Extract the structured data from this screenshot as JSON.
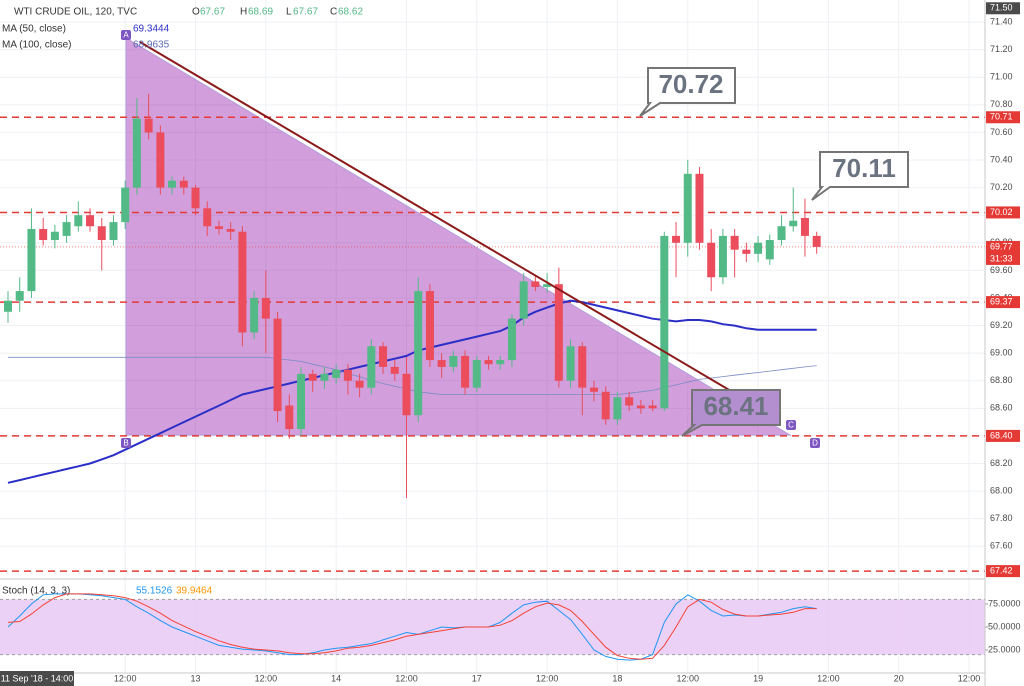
{
  "header": {
    "symbol": "WTI CRUDE OIL, 120, TVC",
    "o_label": "O",
    "o": "67.67",
    "h_label": "H",
    "h": "68.69",
    "l_label": "L",
    "l": "67.67",
    "c_label": "C",
    "c": "68.62",
    "ma50_label": "MA (50, close)",
    "ma50_value": "69.3444",
    "ma100_label": "MA (100, close)",
    "ma100_value": "68.9635",
    "stoch_label": "Stoch (14, 3, 3)",
    "stoch_k": "55.1526",
    "stoch_d": "39.9464",
    "cursor_date": "11 Sep '18 - 14:00"
  },
  "chart_data": {
    "type": "candlestick",
    "categories": [
      null,
      null,
      null,
      null,
      null,
      null,
      null,
      null,
      null,
      null,
      "12:00",
      null,
      null,
      null,
      null,
      null,
      "13",
      null,
      null,
      null,
      null,
      null,
      "12:00",
      null,
      null,
      null,
      null,
      null,
      "14",
      null,
      null,
      null,
      null,
      null,
      "12:00",
      null,
      null,
      null,
      null,
      null,
      "17",
      null,
      null,
      null,
      null,
      null,
      "12:00",
      null,
      null,
      null,
      null,
      null,
      "18",
      null,
      null,
      null,
      null,
      null,
      "12:00",
      null,
      null,
      null,
      null,
      null,
      "19",
      null,
      null,
      null,
      null,
      null,
      "12:00",
      null,
      null,
      null,
      null,
      null,
      "20",
      null,
      null,
      null,
      null,
      null,
      "12:00",
      null
    ],
    "open": [
      69.3,
      69.38,
      69.45,
      69.9,
      69.82,
      69.85,
      69.92,
      70.0,
      69.92,
      69.82,
      69.95,
      70.2,
      70.7,
      70.6,
      70.2,
      70.25,
      70.2,
      70.05,
      69.92,
      69.9,
      69.88,
      69.15,
      69.4,
      69.25,
      68.62,
      68.45,
      68.85,
      68.8,
      68.82,
      68.88,
      68.8,
      68.75,
      69.05,
      68.9,
      68.85,
      68.55,
      69.45,
      68.95,
      68.9,
      68.98,
      68.75,
      68.95,
      68.92,
      68.95,
      69.25,
      69.52,
      69.48,
      69.5,
      68.8,
      69.05,
      68.75,
      68.72,
      68.52,
      68.68,
      68.62,
      68.62,
      68.6,
      69.85,
      69.8,
      70.3,
      69.8,
      69.55,
      69.85,
      69.75,
      69.72,
      69.68,
      69.82,
      69.92,
      69.98,
      69.85,
      null,
      null,
      null,
      null,
      null,
      null,
      null,
      null,
      null,
      null,
      null,
      null,
      null,
      null
    ],
    "high": [
      69.45,
      69.55,
      70.05,
      69.98,
      69.93,
      70.0,
      70.1,
      70.05,
      69.98,
      70.0,
      70.25,
      70.85,
      70.88,
      70.65,
      70.28,
      70.28,
      70.22,
      70.1,
      69.96,
      69.95,
      69.92,
      69.45,
      69.6,
      69.3,
      68.7,
      68.9,
      68.88,
      68.9,
      68.92,
      68.92,
      68.85,
      69.1,
      69.08,
      68.95,
      68.97,
      69.55,
      69.5,
      69.0,
      69.02,
      69.02,
      68.98,
      68.98,
      68.98,
      69.28,
      69.58,
      69.56,
      69.58,
      69.62,
      69.1,
      69.08,
      68.8,
      68.76,
      68.72,
      68.72,
      68.66,
      68.66,
      69.88,
      69.95,
      70.4,
      70.35,
      69.9,
      69.9,
      69.9,
      69.8,
      69.85,
      69.86,
      70.0,
      70.2,
      70.12,
      69.88,
      null,
      null,
      null,
      null,
      null,
      null,
      null,
      null,
      null,
      null,
      null,
      null,
      null,
      null
    ],
    "low": [
      69.22,
      69.3,
      69.4,
      69.78,
      69.76,
      69.8,
      69.88,
      69.88,
      69.6,
      69.78,
      69.9,
      70.15,
      70.55,
      70.15,
      70.15,
      70.15,
      70.0,
      69.85,
      69.86,
      69.82,
      69.05,
      69.1,
      69.0,
      68.5,
      68.38,
      68.4,
      68.72,
      68.74,
      68.78,
      68.7,
      68.68,
      68.7,
      68.85,
      68.8,
      67.95,
      68.5,
      68.9,
      68.82,
      68.86,
      68.7,
      68.72,
      68.88,
      68.88,
      68.9,
      69.2,
      69.45,
      69.44,
      68.75,
      68.75,
      68.55,
      68.65,
      68.48,
      68.48,
      68.58,
      68.56,
      68.58,
      68.58,
      69.55,
      69.7,
      69.75,
      69.45,
      69.5,
      69.55,
      69.66,
      69.66,
      69.64,
      69.78,
      69.88,
      69.7,
      69.72,
      null,
      null,
      null,
      null,
      null,
      null,
      null,
      null,
      null,
      null,
      null,
      null,
      null,
      null
    ],
    "close": [
      69.38,
      69.45,
      69.9,
      69.82,
      69.88,
      69.95,
      70.0,
      69.92,
      69.82,
      69.95,
      70.2,
      70.7,
      70.6,
      70.2,
      70.25,
      70.2,
      70.05,
      69.92,
      69.9,
      69.88,
      69.15,
      69.4,
      69.25,
      68.58,
      68.45,
      68.85,
      68.8,
      68.85,
      68.88,
      68.8,
      68.75,
      69.05,
      68.9,
      68.85,
      68.55,
      69.45,
      68.95,
      68.9,
      68.98,
      68.75,
      68.95,
      68.92,
      68.95,
      69.25,
      69.52,
      69.48,
      69.5,
      68.8,
      69.05,
      68.75,
      68.72,
      68.52,
      68.68,
      68.62,
      68.6,
      68.6,
      69.85,
      69.8,
      70.3,
      69.8,
      69.55,
      69.85,
      69.75,
      69.72,
      69.8,
      69.82,
      69.92,
      69.96,
      69.85,
      69.77,
      null,
      null,
      null,
      null,
      null,
      null,
      null,
      null,
      null,
      null,
      null,
      null,
      null,
      null
    ],
    "up_color": "#53b987",
    "down_color": "#eb4d5c",
    "series": [
      {
        "name": "MA (50, close)",
        "color": "#2b2fc7",
        "values": [
          68.06,
          68.08,
          68.1,
          68.12,
          68.14,
          68.16,
          68.18,
          68.2,
          68.23,
          68.26,
          68.3,
          68.34,
          68.38,
          68.42,
          68.46,
          68.5,
          68.54,
          68.58,
          68.62,
          68.66,
          68.7,
          68.72,
          68.74,
          68.76,
          68.78,
          68.8,
          68.82,
          68.84,
          68.86,
          68.88,
          68.9,
          68.92,
          68.94,
          68.96,
          68.98,
          69.02,
          69.04,
          69.06,
          69.08,
          69.1,
          69.12,
          69.14,
          69.16,
          69.2,
          69.26,
          69.3,
          69.33,
          69.36,
          69.38,
          69.37,
          69.35,
          69.33,
          69.31,
          69.29,
          69.27,
          69.25,
          69.24,
          69.23,
          69.24,
          69.24,
          69.23,
          69.21,
          69.2,
          69.18,
          69.17,
          69.17,
          69.17,
          69.17,
          69.17,
          69.17,
          null,
          null,
          null,
          null,
          null,
          null,
          null,
          null,
          null,
          null,
          null,
          null,
          null,
          null
        ]
      },
      {
        "name": "MA (100, close)",
        "color": "#7b8bc4",
        "values": [
          68.97,
          68.97,
          68.97,
          68.97,
          68.97,
          68.97,
          68.97,
          68.97,
          68.97,
          68.97,
          68.97,
          68.97,
          68.97,
          68.97,
          68.97,
          68.97,
          68.97,
          68.97,
          68.97,
          68.97,
          68.97,
          68.97,
          68.97,
          68.96,
          68.95,
          68.94,
          68.92,
          68.9,
          68.88,
          68.85,
          68.83,
          68.8,
          68.78,
          68.76,
          68.74,
          68.72,
          68.71,
          68.7,
          68.7,
          68.7,
          68.7,
          68.7,
          68.7,
          68.7,
          68.7,
          68.7,
          68.7,
          68.7,
          68.7,
          68.7,
          68.7,
          68.7,
          68.7,
          68.71,
          68.72,
          68.73,
          68.75,
          68.77,
          68.79,
          68.81,
          68.82,
          68.83,
          68.84,
          68.85,
          68.86,
          68.87,
          68.88,
          68.89,
          68.9,
          68.91,
          null,
          null,
          null,
          null,
          null,
          null,
          null,
          null,
          null,
          null,
          null,
          null,
          null,
          null
        ]
      }
    ],
    "ylim": [
      67.37,
      71.56
    ],
    "yticks": [
      {
        "value": 67.6,
        "label": "67.60"
      },
      {
        "value": 67.8,
        "label": "67.80"
      },
      {
        "value": 68.0,
        "label": "68.00"
      },
      {
        "value": 68.2,
        "label": "68.20"
      },
      {
        "value": 68.4,
        "label": "68.40"
      },
      {
        "value": 68.6,
        "label": "68.60"
      },
      {
        "value": 68.8,
        "label": "68.80"
      },
      {
        "value": 69.0,
        "label": "69.00"
      },
      {
        "value": 69.2,
        "label": "69.20"
      },
      {
        "value": 69.4,
        "label": "69.40"
      },
      {
        "value": 69.6,
        "label": "69.60"
      },
      {
        "value": 69.8,
        "label": "69.80"
      },
      {
        "value": 70.0,
        "label": "70.00"
      },
      {
        "value": 70.2,
        "label": "70.20"
      },
      {
        "value": 70.4,
        "label": "70.40"
      },
      {
        "value": 70.6,
        "label": "70.60"
      },
      {
        "value": 70.8,
        "label": "70.80"
      },
      {
        "value": 71.0,
        "label": "71.00"
      },
      {
        "value": 71.2,
        "label": "71.20"
      },
      {
        "value": 71.4,
        "label": "71.40"
      }
    ],
    "grid": true,
    "levels": [
      {
        "value": 70.71,
        "label": "70.71"
      },
      {
        "value": 70.02,
        "label": "70.02"
      },
      {
        "value": 69.37,
        "label": "69.37"
      },
      {
        "value": 68.4,
        "label": "68.40"
      },
      {
        "value": 67.42,
        "label": "67.42"
      }
    ],
    "level_color": "#e53935",
    "last_price": {
      "value": 69.77,
      "label": "69.77",
      "countdown": "31:33"
    },
    "top_tag": {
      "value": 71.5,
      "label": "71.50"
    },
    "callouts": [
      "70.72",
      "70.11",
      "68.41"
    ],
    "pattern_points": [
      "A",
      "B",
      "C",
      "D"
    ],
    "stoch": {
      "series": [
        {
          "name": "%K",
          "color": "#2196f3",
          "values": [
            50,
            62,
            75,
            85,
            86,
            86,
            86,
            85,
            84,
            82,
            80,
            72,
            65,
            57,
            50,
            45,
            40,
            35,
            30,
            28,
            26,
            25,
            24,
            22,
            20,
            20,
            22,
            25,
            27,
            28,
            30,
            32,
            36,
            40,
            44,
            42,
            46,
            50,
            49,
            50,
            50,
            50,
            55,
            65,
            74,
            77,
            78,
            68,
            58,
            42,
            25,
            18,
            15,
            14,
            15,
            20,
            55,
            75,
            85,
            78,
            68,
            62,
            63,
            62,
            62,
            64,
            66,
            70,
            72,
            70,
            null,
            null,
            null,
            null,
            null,
            null,
            null,
            null,
            null,
            null,
            null,
            null,
            null,
            null
          ]
        },
        {
          "name": "%D",
          "color": "#f44336",
          "values": [
            55,
            56,
            64,
            74,
            82,
            86,
            86,
            86,
            85,
            84,
            82,
            78,
            72,
            65,
            57,
            51,
            45,
            40,
            35,
            31,
            28,
            26,
            25,
            24,
            22,
            21,
            21,
            22,
            24,
            27,
            28,
            30,
            33,
            36,
            40,
            42,
            44,
            46,
            48,
            50,
            50,
            50,
            52,
            57,
            65,
            72,
            76,
            74,
            68,
            56,
            42,
            28,
            19,
            16,
            15,
            16,
            30,
            50,
            72,
            80,
            77,
            69,
            64,
            62,
            62,
            63,
            64,
            66,
            70,
            70,
            null,
            null,
            null,
            null,
            null,
            null,
            null,
            null,
            null,
            null,
            null,
            null,
            null,
            null
          ]
        }
      ],
      "ylim": [
        0,
        100
      ],
      "band": [
        20,
        80
      ],
      "yticks": [
        {
          "value": 25,
          "label": "25.0000"
        },
        {
          "value": 50,
          "label": "50.0000"
        },
        {
          "value": 75,
          "label": "75.0000"
        }
      ]
    }
  }
}
